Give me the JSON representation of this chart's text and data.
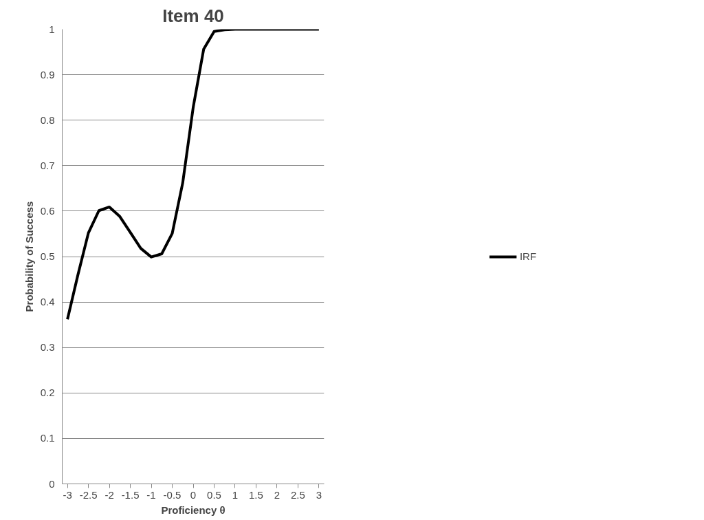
{
  "chart_data": {
    "type": "line",
    "title": "Item 40",
    "xlabel": "Proficiency θ",
    "ylabel": "Probability of Success",
    "x": [
      -3,
      -2.75,
      -2.5,
      -2.25,
      -2,
      -1.75,
      -1.5,
      -1.25,
      -1,
      -0.75,
      -0.5,
      -0.25,
      0,
      0.25,
      0.5,
      0.75,
      1,
      1.25,
      1.5,
      1.75,
      2,
      2.25,
      2.5,
      2.75,
      3
    ],
    "series": [
      {
        "name": "IRF",
        "color": "#000000",
        "values": [
          0.362,
          0.46,
          0.552,
          0.601,
          0.609,
          0.588,
          0.553,
          0.518,
          0.499,
          0.506,
          0.551,
          0.662,
          0.828,
          0.956,
          0.995,
          0.999,
          1,
          1,
          1,
          1,
          1,
          1,
          1,
          1,
          1
        ]
      }
    ],
    "xlim": [
      -3.125,
      3.125
    ],
    "xticks": [
      -3,
      -2.5,
      -2,
      -1.5,
      -1,
      -0.5,
      0,
      0.5,
      1,
      1.5,
      2,
      2.5,
      3
    ],
    "ylim": [
      0,
      1
    ],
    "yticks": [
      0,
      0.1,
      0.2,
      0.3,
      0.4,
      0.5,
      0.6,
      0.7,
      0.8,
      0.9,
      1
    ],
    "grid": "y",
    "legend": "right",
    "marker": "none",
    "line_style": "solid"
  }
}
